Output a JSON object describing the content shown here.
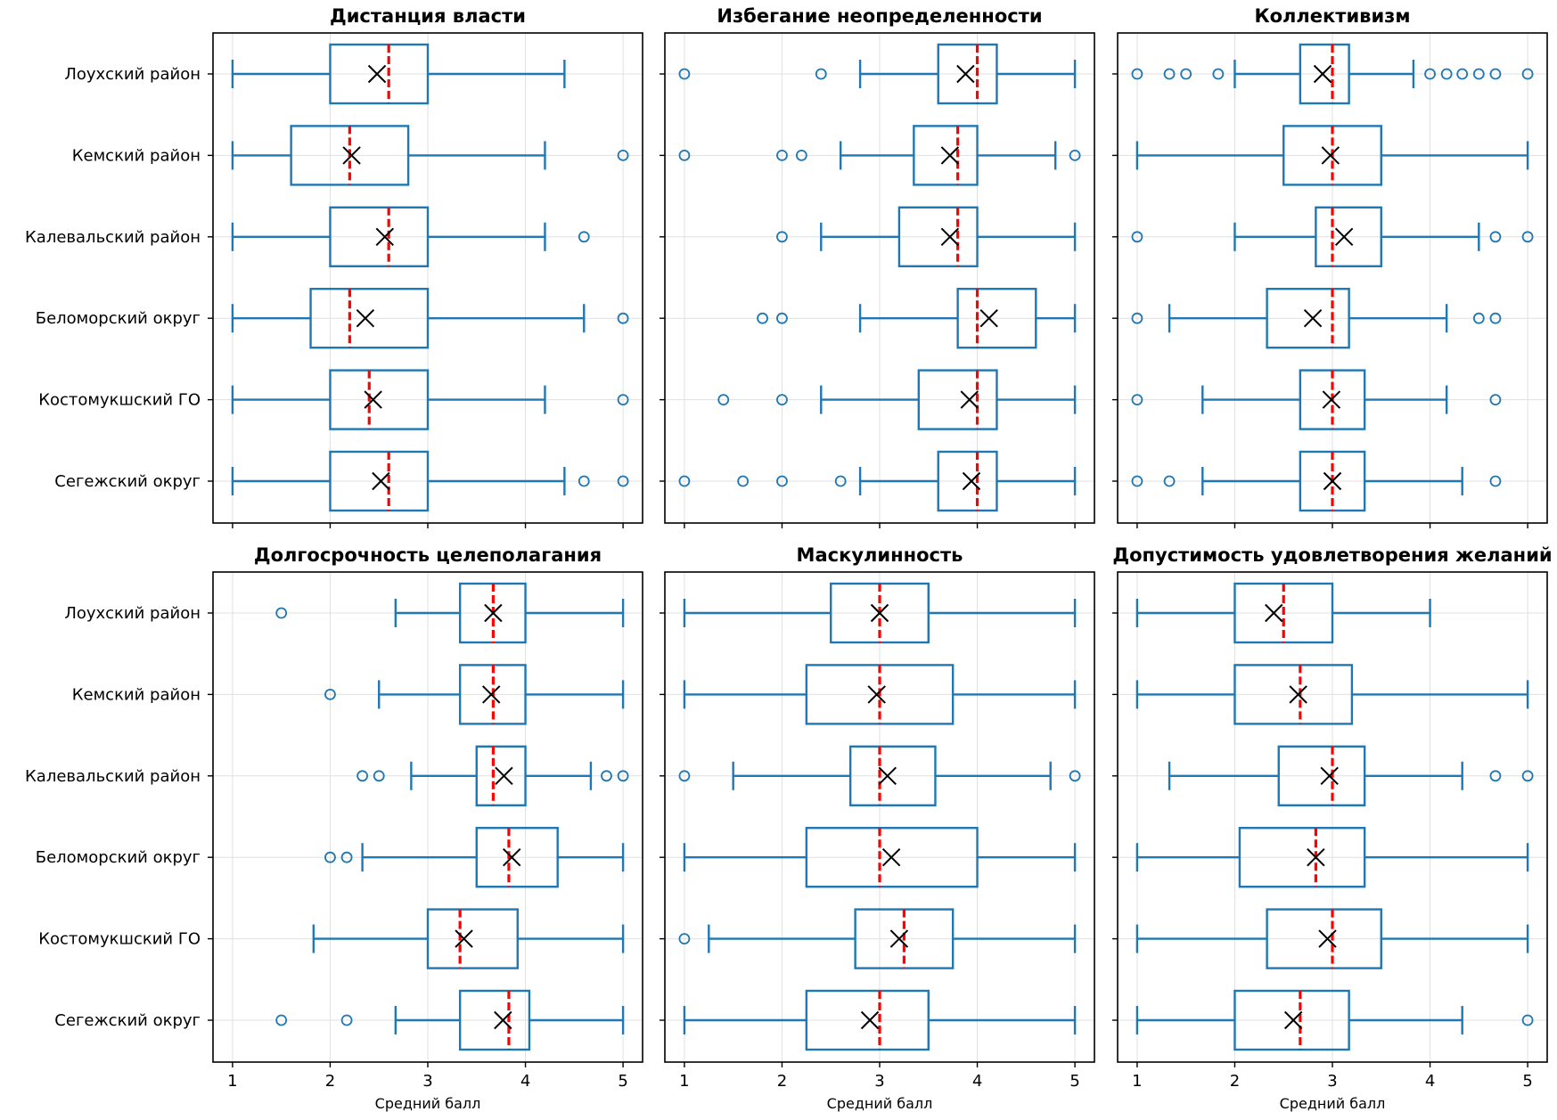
{
  "chart_data": [
    {
      "type": "boxplot",
      "title": "Дистанция власти",
      "xlabel": "",
      "xlim": [
        0.8,
        5.2
      ],
      "xticks": [
        1,
        2,
        3,
        4,
        5
      ],
      "categories": [
        "Лоухский район",
        "Кемский район",
        "Калевальский район",
        "Беломорский округ",
        "Костомукшский ГО",
        "Сегежский округ"
      ],
      "boxes": [
        {
          "whisker_low": 1.0,
          "q1": 2.0,
          "median": 2.6,
          "q3": 3.0,
          "whisker_high": 4.4,
          "mean": 2.48,
          "outliers": []
        },
        {
          "whisker_low": 1.0,
          "q1": 1.6,
          "median": 2.2,
          "q3": 2.8,
          "whisker_high": 4.2,
          "mean": 2.22,
          "outliers": [
            5.0
          ]
        },
        {
          "whisker_low": 1.0,
          "q1": 2.0,
          "median": 2.6,
          "q3": 3.0,
          "whisker_high": 4.2,
          "mean": 2.56,
          "outliers": [
            4.6
          ]
        },
        {
          "whisker_low": 1.0,
          "q1": 1.8,
          "median": 2.2,
          "q3": 3.0,
          "whisker_high": 4.6,
          "mean": 2.36,
          "outliers": [
            5.0
          ]
        },
        {
          "whisker_low": 1.0,
          "q1": 2.0,
          "median": 2.4,
          "q3": 3.0,
          "whisker_high": 4.2,
          "mean": 2.44,
          "outliers": [
            5.0
          ]
        },
        {
          "whisker_low": 1.0,
          "q1": 2.0,
          "median": 2.6,
          "q3": 3.0,
          "whisker_high": 4.4,
          "mean": 2.52,
          "outliers": [
            4.6,
            5.0
          ]
        }
      ],
      "grid": true
    },
    {
      "type": "boxplot",
      "title": "Избегание неопределенности",
      "xlabel": "",
      "xlim": [
        0.8,
        5.2
      ],
      "xticks": [
        1,
        2,
        3,
        4,
        5
      ],
      "categories": [
        "Лоухский район",
        "Кемский район",
        "Калевальский район",
        "Беломорский округ",
        "Костомукшский ГО",
        "Сегежский округ"
      ],
      "boxes": [
        {
          "whisker_low": 2.8,
          "q1": 3.6,
          "median": 4.0,
          "q3": 4.2,
          "whisker_high": 5.0,
          "mean": 3.88,
          "outliers": [
            1.0,
            2.4
          ]
        },
        {
          "whisker_low": 2.6,
          "q1": 3.35,
          "median": 3.8,
          "q3": 4.0,
          "whisker_high": 4.8,
          "mean": 3.72,
          "outliers": [
            1.0,
            2.0,
            2.2,
            5.0
          ]
        },
        {
          "whisker_low": 2.4,
          "q1": 3.2,
          "median": 3.8,
          "q3": 4.0,
          "whisker_high": 5.0,
          "mean": 3.72,
          "outliers": [
            2.0
          ]
        },
        {
          "whisker_low": 2.8,
          "q1": 3.8,
          "median": 4.0,
          "q3": 4.6,
          "whisker_high": 5.0,
          "mean": 4.12,
          "outliers": [
            1.8,
            2.0
          ]
        },
        {
          "whisker_low": 2.4,
          "q1": 3.4,
          "median": 4.0,
          "q3": 4.2,
          "whisker_high": 5.0,
          "mean": 3.92,
          "outliers": [
            1.4,
            2.0
          ]
        },
        {
          "whisker_low": 2.8,
          "q1": 3.6,
          "median": 4.0,
          "q3": 4.2,
          "whisker_high": 5.0,
          "mean": 3.94,
          "outliers": [
            1.0,
            1.6,
            2.0,
            2.6
          ]
        }
      ],
      "grid": true
    },
    {
      "type": "boxplot",
      "title": "Коллективизм",
      "xlabel": "",
      "xlim": [
        0.8,
        5.2
      ],
      "xticks": [
        1,
        2,
        3,
        4,
        5
      ],
      "categories": [
        "Лоухский район",
        "Кемский район",
        "Калевальский район",
        "Беломорский округ",
        "Костомукшский ГО",
        "Сегежский округ"
      ],
      "boxes": [
        {
          "whisker_low": 2.0,
          "q1": 2.67,
          "median": 3.0,
          "q3": 3.17,
          "whisker_high": 3.83,
          "mean": 2.9,
          "outliers": [
            1.0,
            1.33,
            1.5,
            1.83,
            4.0,
            4.17,
            4.33,
            4.5,
            4.67,
            5.0
          ]
        },
        {
          "whisker_low": 1.0,
          "q1": 2.5,
          "median": 3.0,
          "q3": 3.5,
          "whisker_high": 5.0,
          "mean": 2.98,
          "outliers": []
        },
        {
          "whisker_low": 2.0,
          "q1": 2.83,
          "median": 3.0,
          "q3": 3.5,
          "whisker_high": 4.5,
          "mean": 3.12,
          "outliers": [
            1.0,
            4.67,
            5.0
          ]
        },
        {
          "whisker_low": 1.33,
          "q1": 2.33,
          "median": 3.0,
          "q3": 3.17,
          "whisker_high": 4.17,
          "mean": 2.8,
          "outliers": [
            1.0,
            4.5,
            4.67
          ]
        },
        {
          "whisker_low": 1.67,
          "q1": 2.67,
          "median": 3.0,
          "q3": 3.33,
          "whisker_high": 4.17,
          "mean": 2.99,
          "outliers": [
            1.0,
            4.67
          ]
        },
        {
          "whisker_low": 1.67,
          "q1": 2.67,
          "median": 3.0,
          "q3": 3.33,
          "whisker_high": 4.33,
          "mean": 3.0,
          "outliers": [
            1.0,
            1.33,
            4.67
          ]
        }
      ],
      "grid": true
    },
    {
      "type": "boxplot",
      "title": "Долгосрочность целеполагания",
      "xlabel": "Средний балл",
      "xlim": [
        0.8,
        5.2
      ],
      "xticks": [
        1,
        2,
        3,
        4,
        5
      ],
      "categories": [
        "Лоухский район",
        "Кемский район",
        "Калевальский район",
        "Беломорский округ",
        "Костомукшский ГО",
        "Сегежский округ"
      ],
      "boxes": [
        {
          "whisker_low": 2.67,
          "q1": 3.33,
          "median": 3.67,
          "q3": 4.0,
          "whisker_high": 5.0,
          "mean": 3.67,
          "outliers": [
            1.5
          ]
        },
        {
          "whisker_low": 2.5,
          "q1": 3.33,
          "median": 3.67,
          "q3": 4.0,
          "whisker_high": 5.0,
          "mean": 3.65,
          "outliers": [
            2.0
          ]
        },
        {
          "whisker_low": 2.83,
          "q1": 3.5,
          "median": 3.67,
          "q3": 4.0,
          "whisker_high": 4.67,
          "mean": 3.78,
          "outliers": [
            2.33,
            2.5,
            4.83,
            5.0
          ]
        },
        {
          "whisker_low": 2.33,
          "q1": 3.5,
          "median": 3.83,
          "q3": 4.33,
          "whisker_high": 5.0,
          "mean": 3.86,
          "outliers": [
            2.0,
            2.17
          ]
        },
        {
          "whisker_low": 1.83,
          "q1": 3.0,
          "median": 3.33,
          "q3": 3.92,
          "whisker_high": 5.0,
          "mean": 3.37,
          "outliers": []
        },
        {
          "whisker_low": 2.67,
          "q1": 3.33,
          "median": 3.83,
          "q3": 4.04,
          "whisker_high": 5.0,
          "mean": 3.77,
          "outliers": [
            1.5,
            2.17
          ]
        }
      ],
      "grid": true
    },
    {
      "type": "boxplot",
      "title": "Маскулинность",
      "xlabel": "Средний балл",
      "xlim": [
        0.8,
        5.2
      ],
      "xticks": [
        1,
        2,
        3,
        4,
        5
      ],
      "categories": [
        "Лоухский район",
        "Кемский район",
        "Калевальский район",
        "Беломорский округ",
        "Костомукшский ГО",
        "Сегежский округ"
      ],
      "boxes": [
        {
          "whisker_low": 1.0,
          "q1": 2.5,
          "median": 3.0,
          "q3": 3.5,
          "whisker_high": 5.0,
          "mean": 3.0,
          "outliers": []
        },
        {
          "whisker_low": 1.0,
          "q1": 2.25,
          "median": 3.0,
          "q3": 3.75,
          "whisker_high": 5.0,
          "mean": 2.97,
          "outliers": []
        },
        {
          "whisker_low": 1.5,
          "q1": 2.7,
          "median": 3.0,
          "q3": 3.57,
          "whisker_high": 4.75,
          "mean": 3.08,
          "outliers": [
            1.0,
            5.0
          ]
        },
        {
          "whisker_low": 1.0,
          "q1": 2.25,
          "median": 3.0,
          "q3": 4.0,
          "whisker_high": 5.0,
          "mean": 3.12,
          "outliers": []
        },
        {
          "whisker_low": 1.25,
          "q1": 2.75,
          "median": 3.25,
          "q3": 3.75,
          "whisker_high": 5.0,
          "mean": 3.2,
          "outliers": [
            1.0
          ]
        },
        {
          "whisker_low": 1.0,
          "q1": 2.25,
          "median": 3.0,
          "q3": 3.5,
          "whisker_high": 5.0,
          "mean": 2.9,
          "outliers": []
        }
      ],
      "grid": true
    },
    {
      "type": "boxplot",
      "title": "Допустимость удовлетворения желаний",
      "xlabel": "Средний балл",
      "xlim": [
        0.8,
        5.2
      ],
      "xticks": [
        1,
        2,
        3,
        4,
        5
      ],
      "categories": [
        "Лоухский район",
        "Кемский район",
        "Калевальский район",
        "Беломорский округ",
        "Костомукшский ГО",
        "Сегежский округ"
      ],
      "boxes": [
        {
          "whisker_low": 1.0,
          "q1": 2.0,
          "median": 2.5,
          "q3": 3.0,
          "whisker_high": 4.0,
          "mean": 2.4,
          "outliers": []
        },
        {
          "whisker_low": 1.0,
          "q1": 2.0,
          "median": 2.67,
          "q3": 3.2,
          "whisker_high": 5.0,
          "mean": 2.65,
          "outliers": []
        },
        {
          "whisker_low": 1.33,
          "q1": 2.45,
          "median": 3.0,
          "q3": 3.33,
          "whisker_high": 4.33,
          "mean": 2.97,
          "outliers": [
            4.67,
            5.0
          ]
        },
        {
          "whisker_low": 1.0,
          "q1": 2.05,
          "median": 2.83,
          "q3": 3.33,
          "whisker_high": 5.0,
          "mean": 2.83,
          "outliers": []
        },
        {
          "whisker_low": 1.0,
          "q1": 2.33,
          "median": 3.0,
          "q3": 3.5,
          "whisker_high": 5.0,
          "mean": 2.95,
          "outliers": []
        },
        {
          "whisker_low": 1.0,
          "q1": 2.0,
          "median": 2.67,
          "q3": 3.17,
          "whisker_high": 4.33,
          "mean": 2.6,
          "outliers": [
            5.0
          ]
        }
      ],
      "grid": true
    }
  ],
  "colors": {
    "box": "#1f77b4",
    "median": "#ff0000",
    "mean_marker": "#000000",
    "outlier": "#1f77b4",
    "grid": "#e0e0e0",
    "frame": "#000000"
  }
}
